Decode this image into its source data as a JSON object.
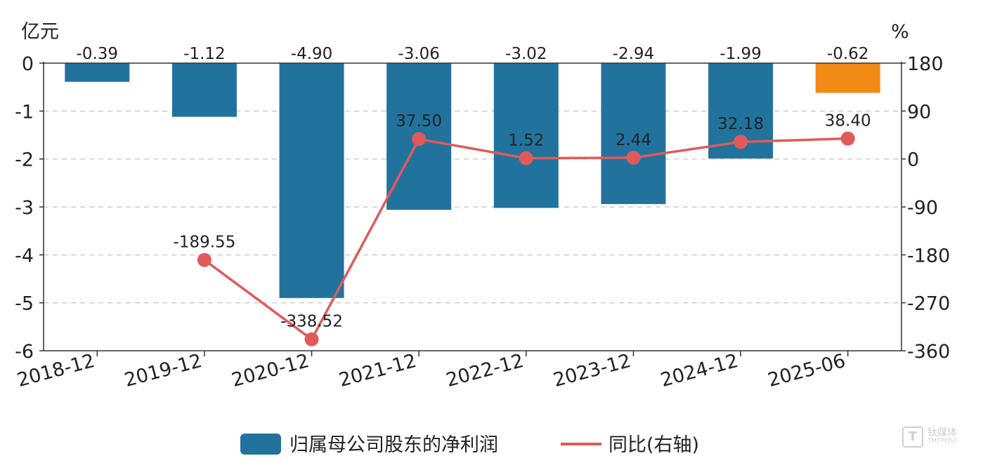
{
  "chart_data": {
    "type": "bar+line",
    "categories": [
      "2018-12",
      "2019-12",
      "2020-12",
      "2021-12",
      "2022-12",
      "2023-12",
      "2024-12",
      "2025-06"
    ],
    "series": [
      {
        "name": "归属母公司股东的净利润",
        "type": "bar",
        "axis": "left",
        "values": [
          -0.39,
          -1.12,
          -4.9,
          -3.06,
          -3.02,
          -2.94,
          -1.99,
          -0.62
        ],
        "labels": [
          "-0.39",
          "-1.12",
          "-4.90",
          "-3.06",
          "-3.02",
          "-2.94",
          "-1.99",
          "-0.62"
        ],
        "color": "#21739e",
        "highlight_color": "#f28a16",
        "highlight_index": 7
      },
      {
        "name": "同比(右轴)",
        "type": "line",
        "axis": "right",
        "values": [
          null,
          -189.55,
          -338.52,
          37.5,
          1.52,
          2.44,
          32.18,
          38.4
        ],
        "labels": [
          "",
          "-189.55",
          "-338.52",
          "37.50",
          "1.52",
          "2.44",
          "32.18",
          "38.40"
        ],
        "color": "#e05a5a"
      }
    ],
    "left_axis": {
      "unit": "亿元",
      "ylim": [
        -6,
        0
      ],
      "ticks": [
        0,
        -1,
        -2,
        -3,
        -4,
        -5,
        -6
      ],
      "tick_labels": [
        "0",
        "-1",
        "-2",
        "-3",
        "-4",
        "-5",
        "-6"
      ]
    },
    "right_axis": {
      "unit": "%",
      "ylim": [
        -360,
        180
      ],
      "ticks": [
        180,
        90,
        0,
        -90,
        -180,
        -270,
        -360
      ],
      "tick_labels": [
        "180",
        "90",
        "0",
        "-90",
        "-180",
        "-270",
        "-360"
      ]
    },
    "grid": true,
    "legend": {
      "position": "bottom-center",
      "items": [
        "归属母公司股东的净利润",
        "同比(右轴)"
      ]
    }
  },
  "watermark": {
    "icon": "T",
    "line1": "钛媒体",
    "line2": "TMTPOST"
  }
}
